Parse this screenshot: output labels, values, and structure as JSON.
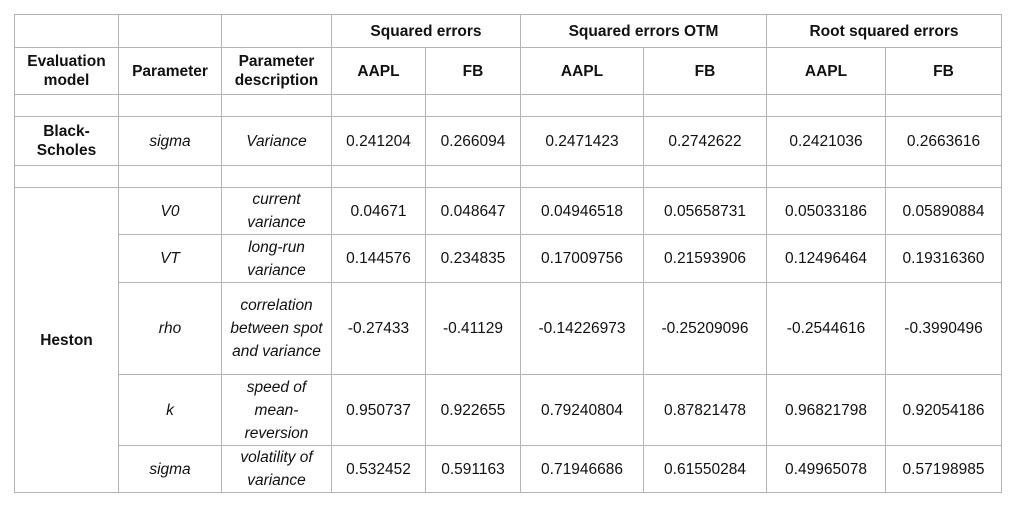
{
  "header": {
    "groups": [
      "Squared errors",
      "Squared errors OTM",
      "Root squared errors"
    ],
    "evaluation_model": "Evaluation model",
    "parameter": "Parameter",
    "parameter_description": "Parameter description",
    "stocks": [
      "AAPL",
      "FB",
      "AAPL",
      "FB",
      "AAPL",
      "FB"
    ]
  },
  "black_scholes": {
    "model": "Black-Scholes",
    "rows": [
      {
        "param": "sigma",
        "desc": "Variance",
        "values": [
          "0.241204",
          "0.266094",
          "0.2471423",
          "0.2742622",
          "0.2421036",
          "0.2663616"
        ]
      }
    ]
  },
  "heston": {
    "model": "Heston",
    "rows": [
      {
        "param": "V0",
        "desc": "current variance",
        "values": [
          "0.04671",
          "0.048647",
          "0.04946518",
          "0.05658731",
          "0.05033186",
          "0.05890884"
        ]
      },
      {
        "param": "VT",
        "desc": "long-run variance",
        "values": [
          "0.144576",
          "0.234835",
          "0.17009756",
          "0.21593906",
          "0.12496464",
          "0.19316360"
        ]
      },
      {
        "param": "rho",
        "desc": "correlation between spot and variance",
        "values": [
          "-0.27433",
          "-0.41129",
          "-0.14226973",
          "-0.25209096",
          "-0.2544616",
          "-0.3990496"
        ]
      },
      {
        "param": "k",
        "desc": "speed of mean-reversion",
        "values": [
          "0.950737",
          "0.922655",
          "0.79240804",
          "0.87821478",
          "0.96821798",
          "0.92054186"
        ]
      },
      {
        "param": "sigma",
        "desc": "volatility of variance",
        "values": [
          "0.532452",
          "0.591163",
          "0.71946686",
          "0.61550284",
          "0.49965078",
          "0.57198985"
        ]
      }
    ]
  }
}
